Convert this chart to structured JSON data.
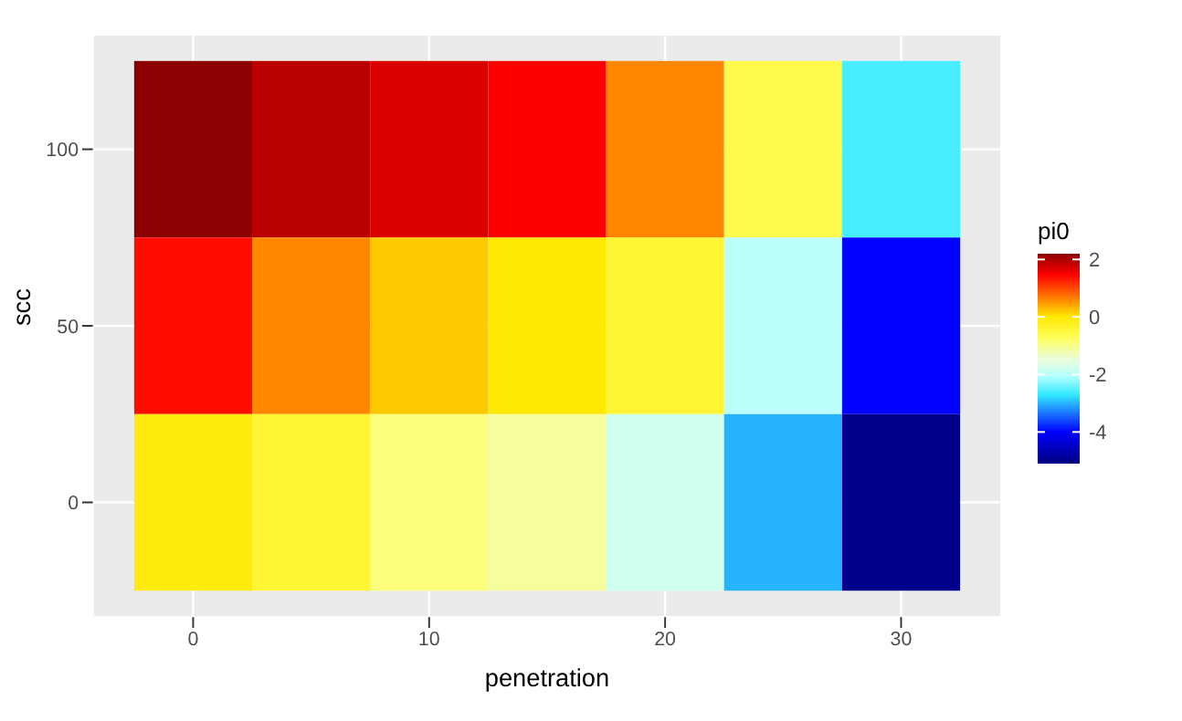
{
  "chart_data": {
    "type": "heatmap",
    "xlabel": "penetration",
    "ylabel": "scc",
    "clabel": "pi0",
    "x": [
      0,
      5,
      10,
      15,
      20,
      25,
      30
    ],
    "y_categories": [
      "100",
      "50",
      "0"
    ],
    "cells": [
      [
        2.2,
        1.9,
        1.7,
        1.5,
        0.6,
        -0.6,
        -2.6
      ],
      [
        1.4,
        0.6,
        0.2,
        0,
        -0.4,
        -2,
        -4
      ],
      [
        -0.1,
        -0.4,
        -0.9,
        -1.1,
        -1.8,
        -3,
        -5
      ]
    ],
    "xlim": [
      -4.25,
      34.25
    ],
    "xticks": [
      0,
      10,
      20,
      30
    ],
    "clim": [
      -5.1,
      2.2
    ],
    "cticks": [
      2,
      0,
      -2,
      -4
    ],
    "grid": true
  }
}
